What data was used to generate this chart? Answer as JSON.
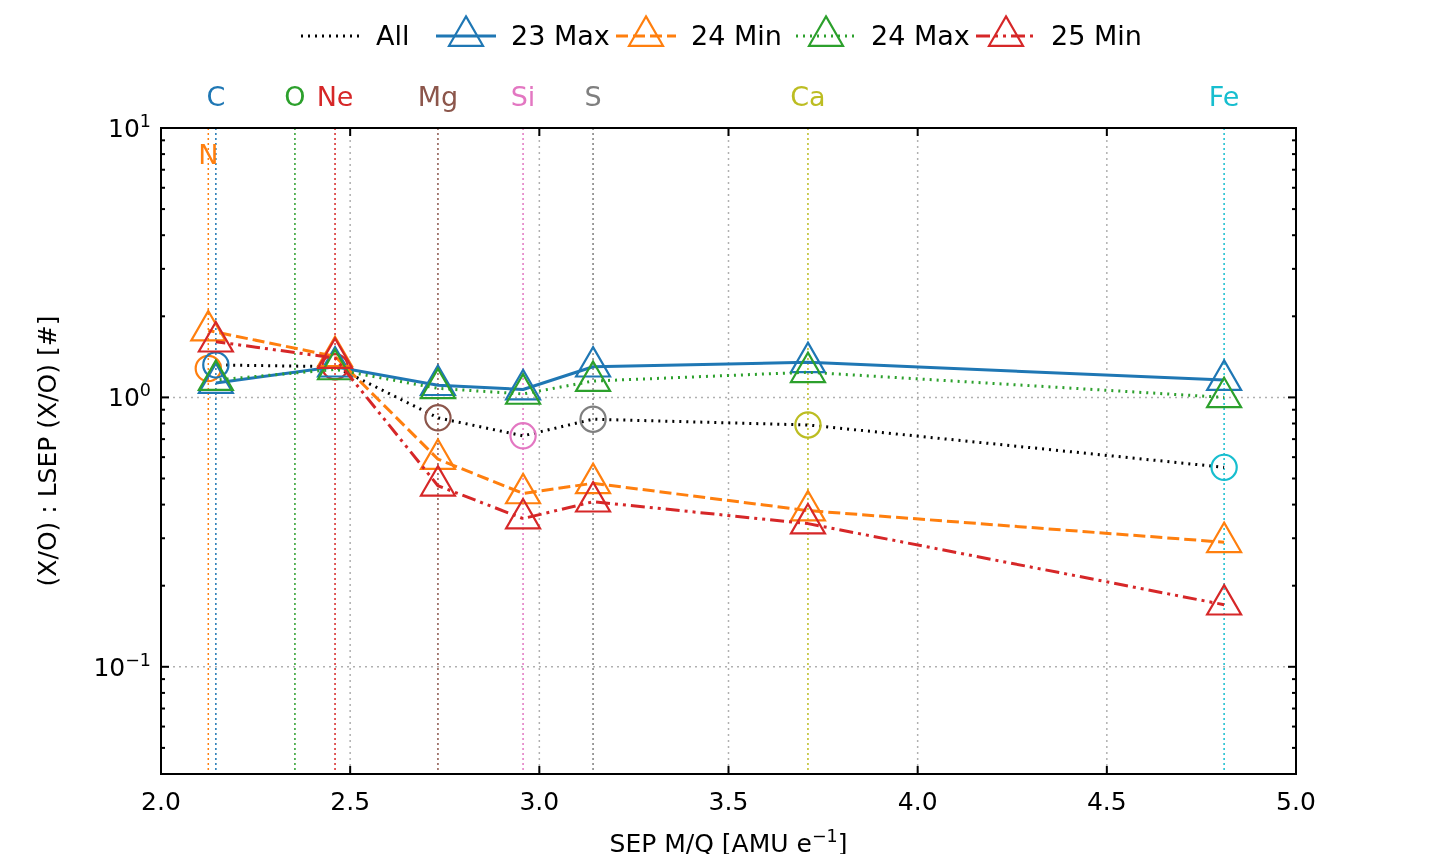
{
  "chart_data": {
    "type": "line",
    "xlabel": "SEP M/Q [AMU e$^{−1}$]",
    "ylabel": "(X/O) : LSEP (X/O) [#]",
    "log": "y",
    "grid": true,
    "legend": "top",
    "xlim": [
      2.0,
      5.0
    ],
    "xticks": [
      {
        "value": 2.0,
        "label": "2.0"
      },
      {
        "value": 2.5,
        "label": "2.5"
      },
      {
        "value": 3.0,
        "label": "3.0"
      },
      {
        "value": 3.5,
        "label": "3.5"
      },
      {
        "value": 4.0,
        "label": "4.0"
      },
      {
        "value": 4.5,
        "label": "4.5"
      },
      {
        "value": 5.0,
        "label": "5.0"
      }
    ],
    "ylim": [
      0.04,
      10
    ],
    "yticks": [
      {
        "value": 0.04,
        "label": null
      },
      {
        "value": 0.05,
        "label": null
      },
      {
        "value": 0.06,
        "label": null
      },
      {
        "value": 0.07,
        "label": null
      },
      {
        "value": 0.08,
        "label": null
      },
      {
        "value": 0.09,
        "label": null
      },
      {
        "value": 0.1,
        "label": "10$^{−1}$"
      },
      {
        "value": 0.2,
        "label": null
      },
      {
        "value": 0.3,
        "label": null
      },
      {
        "value": 0.4,
        "label": null
      },
      {
        "value": 0.5,
        "label": null
      },
      {
        "value": 0.6,
        "label": null
      },
      {
        "value": 0.7,
        "label": null
      },
      {
        "value": 0.8,
        "label": null
      },
      {
        "value": 0.9,
        "label": null
      },
      {
        "value": 1,
        "label": "10$^{0}$"
      },
      {
        "value": 2,
        "label": null
      },
      {
        "value": 3,
        "label": null
      },
      {
        "value": 4,
        "label": null
      },
      {
        "value": 5,
        "label": null
      },
      {
        "value": 6,
        "label": null
      },
      {
        "value": 7,
        "label": null
      },
      {
        "value": 8,
        "label": null
      },
      {
        "value": 9,
        "label": null
      },
      {
        "value": 10,
        "label": "10$^{1}$"
      }
    ],
    "ref_lines": [
      {
        "axis": "x",
        "value": 2.145,
        "label": "C",
        "color": "#1f77b4",
        "line_style": "dotted"
      },
      {
        "axis": "x",
        "value": 2.125,
        "label": "N",
        "color": "#ff7f0e",
        "line_style": "dotted"
      },
      {
        "axis": "x",
        "value": 2.354,
        "label": "O",
        "color": "#2ca02c",
        "line_style": "dotted"
      },
      {
        "axis": "x",
        "value": 2.46,
        "label": "Ne",
        "color": "#d62728",
        "line_style": "dotted"
      },
      {
        "axis": "x",
        "value": 2.732,
        "label": "Mg",
        "color": "#8c564b",
        "line_style": "dotted"
      },
      {
        "axis": "x",
        "value": 2.957,
        "label": "Si",
        "color": "#e377c2",
        "line_style": "dotted"
      },
      {
        "axis": "x",
        "value": 3.142,
        "label": "S",
        "color": "#7f7f7f",
        "line_style": "dotted"
      },
      {
        "axis": "x",
        "value": 3.71,
        "label": "Ca",
        "color": "#bcbd22",
        "line_style": "dotted"
      },
      {
        "axis": "x",
        "value": 4.81,
        "label": "Fe",
        "color": "#17becf",
        "line_style": "dotted"
      }
    ],
    "series": [
      {
        "name": "All",
        "color": "#000000",
        "line_style": "dotted",
        "marker": "circle",
        "x": [
          2.125,
          2.145,
          2.46,
          2.732,
          2.957,
          3.142,
          3.71,
          4.81
        ],
        "values": [
          1.28,
          1.32,
          1.3,
          0.84,
          0.72,
          0.83,
          0.79,
          0.55
        ],
        "colors": [
          "#ff7f0e",
          "#1f77b4",
          "#d62728",
          "#8c564b",
          "#e377c2",
          "#7f7f7f",
          "#bcbd22",
          "#17becf"
        ]
      },
      {
        "name": "23 Max",
        "color": "#1f77b4",
        "line_style": "solid",
        "marker": "triangle",
        "x": [
          2.145,
          2.46,
          2.732,
          2.957,
          3.142,
          3.71,
          4.81
        ],
        "values": [
          1.13,
          1.3,
          1.11,
          1.07,
          1.3,
          1.35,
          1.16
        ]
      },
      {
        "name": "24 Min",
        "color": "#ff7f0e",
        "line_style": "dashed",
        "marker": "triangle",
        "x": [
          2.125,
          2.46,
          2.732,
          2.957,
          3.142,
          3.71,
          4.81
        ],
        "values": [
          1.77,
          1.42,
          0.59,
          0.44,
          0.48,
          0.38,
          0.29
        ]
      },
      {
        "name": "24 Max",
        "color": "#2ca02c",
        "line_style": "dotted",
        "marker": "triangle",
        "x": [
          2.145,
          2.46,
          2.732,
          2.957,
          3.142,
          3.71,
          4.81
        ],
        "values": [
          1.16,
          1.27,
          1.08,
          1.03,
          1.15,
          1.24,
          1.0
        ]
      },
      {
        "name": "25 Min",
        "color": "#d62728",
        "line_style": "dashdot",
        "marker": "triangle",
        "x": [
          2.145,
          2.46,
          2.732,
          2.957,
          3.142,
          3.71,
          4.81
        ],
        "values": [
          1.61,
          1.4,
          0.47,
          0.355,
          0.41,
          0.34,
          0.17
        ]
      }
    ]
  }
}
